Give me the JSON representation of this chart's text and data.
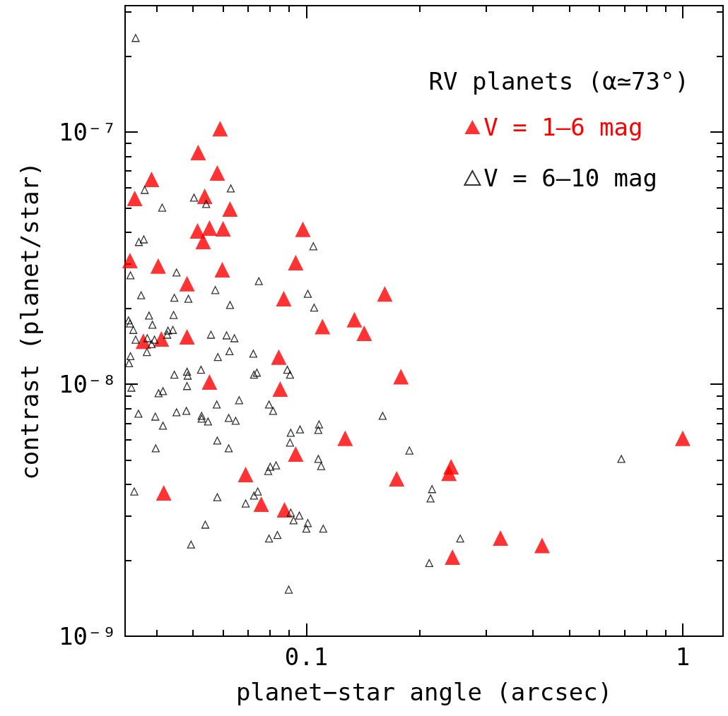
{
  "chart_data": {
    "type": "scatter",
    "xlabel": "planet−star angle (arcsec)",
    "ylabel": "contrast (planet/star)",
    "legend_title": "RV planets (α≃73°)",
    "log": "xy",
    "grid": false,
    "legend": "top right",
    "marker": "triangle",
    "xlim": [
      0.033,
      1.28
    ],
    "ylim": [
      1e-09,
      3.17e-07
    ],
    "xticks": [
      {
        "value": 0.04,
        "label": null
      },
      {
        "value": 0.05,
        "label": null
      },
      {
        "value": 0.06,
        "label": null
      },
      {
        "value": 0.07,
        "label": null
      },
      {
        "value": 0.08,
        "label": null
      },
      {
        "value": 0.09,
        "label": null
      },
      0.1,
      {
        "value": 0.2,
        "label": null
      },
      {
        "value": 0.3,
        "label": null
      },
      {
        "value": 0.4,
        "label": null
      },
      {
        "value": 0.5,
        "label": null
      },
      {
        "value": 0.6,
        "label": null
      },
      {
        "value": 0.7,
        "label": null
      },
      {
        "value": 0.8,
        "label": null
      },
      {
        "value": 0.9,
        "label": null
      },
      1
    ],
    "yticks": [
      {
        "value": 1e-09,
        "label": "10⁻⁹"
      },
      {
        "value": 2e-09,
        "label": null
      },
      {
        "value": 3e-09,
        "label": null
      },
      {
        "value": 4e-09,
        "label": null
      },
      {
        "value": 5e-09,
        "label": null
      },
      {
        "value": 6e-09,
        "label": null
      },
      {
        "value": 7e-09,
        "label": null
      },
      {
        "value": 8e-09,
        "label": null
      },
      {
        "value": 9e-09,
        "label": null
      },
      {
        "value": 1e-08,
        "label": "10⁻⁸"
      },
      {
        "value": 2e-08,
        "label": null
      },
      {
        "value": 3e-08,
        "label": null
      },
      {
        "value": 4e-08,
        "label": null
      },
      {
        "value": 5e-08,
        "label": null
      },
      {
        "value": 6e-08,
        "label": null
      },
      {
        "value": 7e-08,
        "label": null
      },
      {
        "value": 8e-08,
        "label": null
      },
      {
        "value": 9e-08,
        "label": null
      },
      {
        "value": 1e-07,
        "label": "10⁻⁷"
      },
      {
        "value": 2e-07,
        "label": null
      },
      {
        "value": 3e-07,
        "label": null
      }
    ],
    "series": [
      {
        "name": "V = 1–6 mag",
        "color": "#ff0000",
        "x": [
          0.034,
          0.035,
          0.0388,
          0.0404,
          0.0369,
          0.0412,
          0.0482,
          0.0482,
          0.0516,
          0.0514,
          0.0532,
          0.0537,
          0.0553,
          0.058,
          0.059,
          0.0601,
          0.0598,
          0.0627,
          0.0553,
          0.0418,
          0.069,
          0.0759,
          0.0875,
          0.0845,
          0.0852,
          0.0871,
          0.0937,
          0.0979,
          0.0937,
          0.1104,
          0.1268,
          0.1342,
          0.1425,
          0.1616,
          0.1738,
          0.1784,
          0.2425,
          0.2393,
          0.2445,
          0.328,
          0.423,
          1.0
        ],
        "values": [
          3.09e-08,
          5.45e-08,
          6.49e-08,
          2.94e-08,
          1.48e-08,
          1.51e-08,
          2.5e-08,
          1.54e-08,
          8.29e-08,
          4.05e-08,
          3.68e-08,
          5.56e-08,
          4.16e-08,
          6.88e-08,
          1.03e-07,
          4.13e-08,
          2.84e-08,
          4.95e-08,
          1.02e-08,
          3.7e-09,
          4.38e-09,
          3.34e-09,
          3.17e-09,
          1.28e-08,
          9.56e-09,
          2.18e-08,
          3.03e-08,
          4.11e-08,
          5.28e-09,
          1.69e-08,
          6.09e-09,
          1.8e-08,
          1.59e-08,
          2.28e-08,
          4.21e-09,
          1.07e-08,
          4.7e-09,
          4.43e-09,
          2.06e-09,
          2.45e-09,
          2.29e-09,
          6.09e-09
        ]
      },
      {
        "name": "V = 6–10 mag",
        "color": "#000000",
        "x": [
          0.0352,
          0.0372,
          0.0503,
          0.0542,
          0.063,
          0.0414,
          0.037,
          0.0359,
          0.1044,
          0.0341,
          0.0452,
          0.0748,
          0.0573,
          0.0364,
          0.0446,
          0.0486,
          0.1009,
          0.0627,
          0.1049,
          0.0382,
          0.0444,
          0.0337,
          0.034,
          0.039,
          0.0347,
          0.0429,
          0.0442,
          0.0427,
          0.0352,
          0.0378,
          0.0395,
          0.0388,
          0.0558,
          0.0614,
          0.0644,
          0.0377,
          0.0625,
          0.0341,
          0.0723,
          0.0582,
          0.0338,
          0.0446,
          0.0482,
          0.0484,
          0.0525,
          0.0726,
          0.0739,
          0.089,
          0.0905,
          0.0343,
          0.0405,
          0.0416,
          0.0482,
          0.0578,
          0.0663,
          0.0796,
          0.0816,
          0.0358,
          0.0397,
          0.0452,
          0.048,
          0.0527,
          0.0527,
          0.0548,
          0.0622,
          0.0649,
          0.0416,
          0.1081,
          0.1076,
          0.0962,
          0.0909,
          0.0905,
          0.058,
          0.0398,
          0.0622,
          0.1076,
          0.1095,
          0.0831,
          0.0802,
          0.0792,
          0.0349,
          0.0743,
          0.0726,
          0.058,
          0.069,
          0.0909,
          0.0958,
          0.0925,
          0.1009,
          0.1,
          0.1109,
          0.0539,
          0.0796,
          0.0838,
          0.0494,
          0.0898,
          0.1595,
          0.1879,
          0.2158,
          0.2138,
          0.2564,
          0.2121,
          0.687
        ],
        "values": [
          2.36e-07,
          5.89e-08,
          5.49e-08,
          5.18e-08,
          5.97e-08,
          5.01e-08,
          3.75e-08,
          3.66e-08,
          3.52e-08,
          2.7e-08,
          2.77e-08,
          2.56e-08,
          2.36e-08,
          2.25e-08,
          2.2e-08,
          2.18e-08,
          2.28e-08,
          2.06e-08,
          2.01e-08,
          1.87e-08,
          1.88e-08,
          1.79e-08,
          1.74e-08,
          1.72e-08,
          1.64e-08,
          1.63e-08,
          1.64e-08,
          1.57e-08,
          1.5e-08,
          1.52e-08,
          1.5e-08,
          1.44e-08,
          1.57e-08,
          1.56e-08,
          1.52e-08,
          1.34e-08,
          1.35e-08,
          1.29e-08,
          1.32e-08,
          1.28e-08,
          1.21e-08,
          1.09e-08,
          1.12e-08,
          1.08e-08,
          1.14e-08,
          1.09e-08,
          1.11e-08,
          1.14e-08,
          1.09e-08,
          9.68e-09,
          9.2e-09,
          9.38e-09,
          9.82e-09,
          8.3e-09,
          8.63e-09,
          8.3e-09,
          7.83e-09,
          7.63e-09,
          7.43e-09,
          7.73e-09,
          7.83e-09,
          7.48e-09,
          7.29e-09,
          7.11e-09,
          7.34e-09,
          7.15e-09,
          6.84e-09,
          6.92e-09,
          6.58e-09,
          6.61e-09,
          6.41e-09,
          5.86e-09,
          5.97e-09,
          5.56e-09,
          5.56e-09,
          5.05e-09,
          4.73e-09,
          4.76e-09,
          4.7e-09,
          4.52e-09,
          3.75e-09,
          3.75e-09,
          3.61e-09,
          3.56e-09,
          3.36e-09,
          3.09e-09,
          3.01e-09,
          2.88e-09,
          2.81e-09,
          2.67e-09,
          2.67e-09,
          2.77e-09,
          2.44e-09,
          2.52e-09,
          2.31e-09,
          1.53e-09,
          7.48e-09,
          5.45e-09,
          3.83e-09,
          3.52e-09,
          2.44e-09,
          1.95e-09,
          5.05e-09
        ]
      }
    ]
  }
}
